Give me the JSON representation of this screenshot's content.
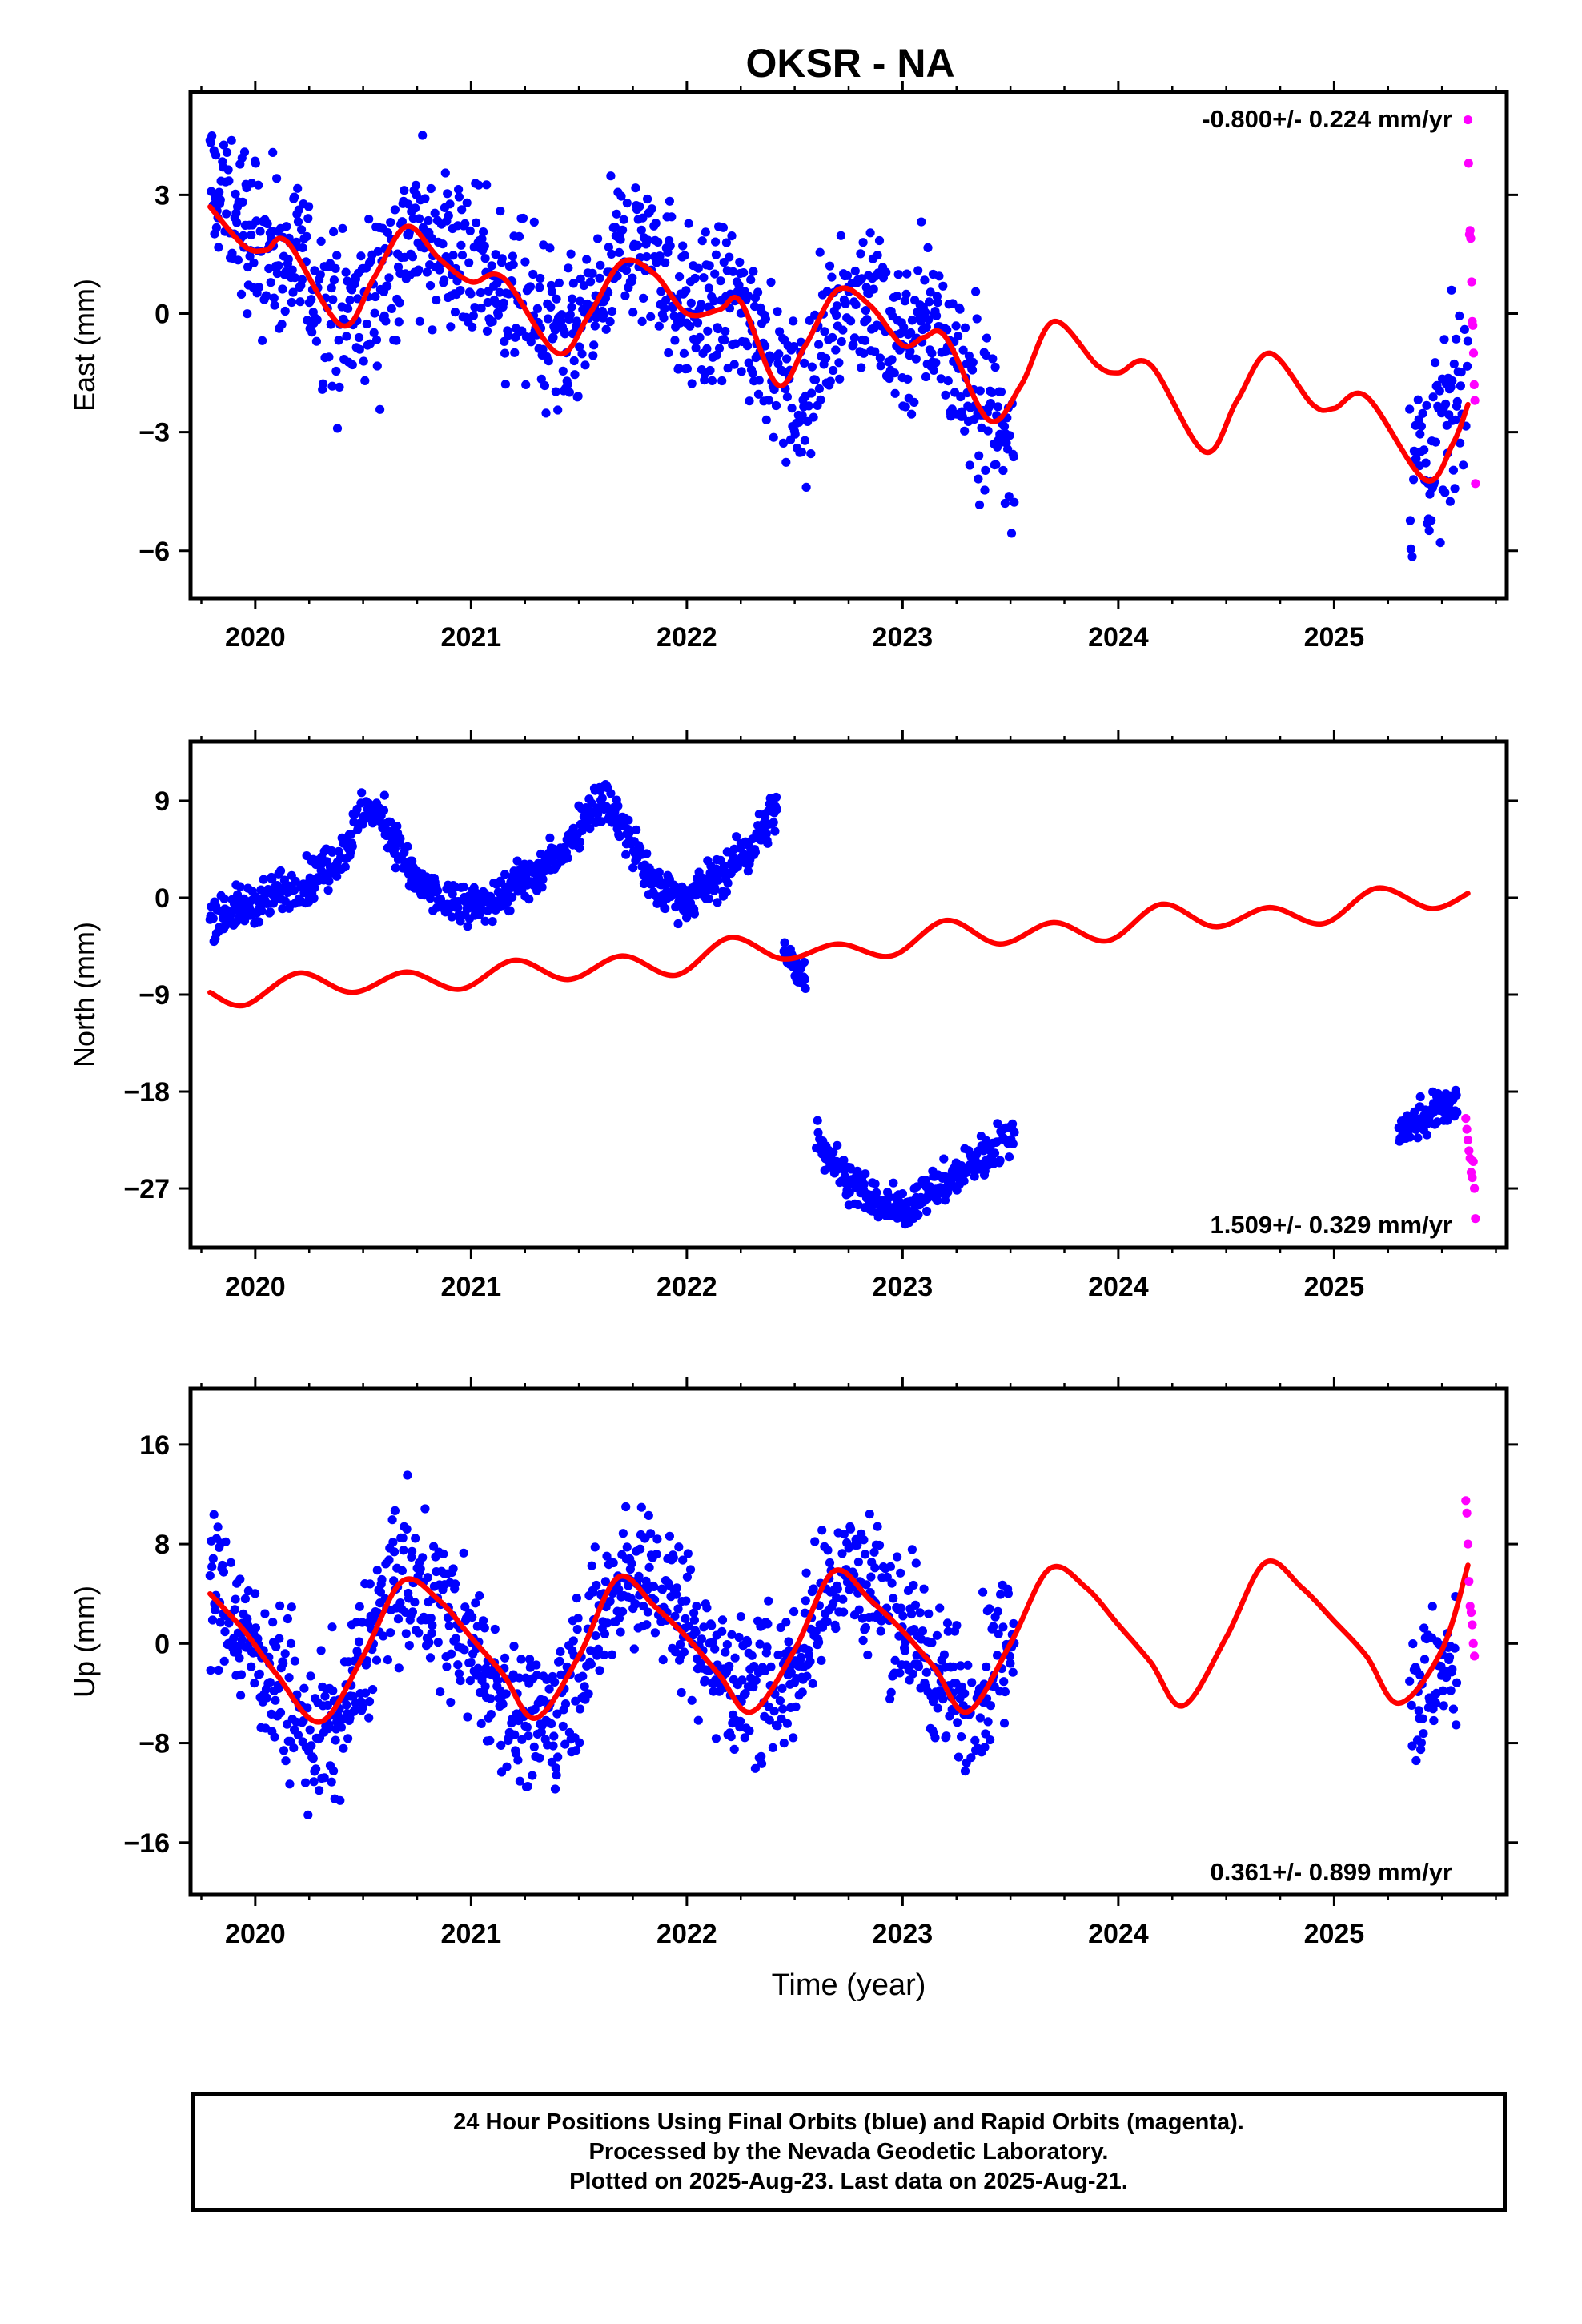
{
  "title": "OKSR - NA",
  "colors": {
    "final": "#0000ff",
    "rapid": "#ff00ff",
    "model": "#ff0000",
    "frame": "#000000"
  },
  "chart_data": [
    {
      "type": "scatter",
      "ylabel": "East (mm)",
      "rate_label": "-0.800+/- 0.224 mm/yr",
      "rate_position": "top-right",
      "xlim": [
        2019.7,
        2025.8
      ],
      "ylim": [
        -7.2,
        5.6
      ],
      "yticks": [
        3,
        0,
        -3,
        -6
      ],
      "ytick_labels": [
        "3",
        "0",
        "−3",
        "−6"
      ],
      "xticks": [
        2020,
        2021,
        2022,
        2023,
        2024,
        2025
      ],
      "xtick_labels": [
        "2020",
        "2021",
        "2022",
        "2023",
        "2024",
        "2025"
      ],
      "series": [
        {
          "kind": "final",
          "segments": [
            {
              "x": [
                2019.79,
                2020.0,
                2020.2,
                2020.4,
                2020.55,
                2020.7,
                2020.9,
                2021.1,
                2021.3,
                2021.45,
                2021.6,
                2021.7,
                2021.85,
                2022.0,
                2022.2,
                2022.35,
                2022.45,
                2022.55,
                2022.7,
                2022.85,
                2023.0,
                2023.15,
                2023.3,
                2023.4,
                2023.52
              ],
              "y": [
                3.3,
                1.8,
                1.3,
                -0.4,
                0.3,
                1.9,
                1.6,
                0.8,
                0.0,
                -1.0,
                0.2,
                1.8,
                1.6,
                0.0,
                0.2,
                -0.4,
                -1.8,
                -2.4,
                0.4,
                0.3,
                -0.6,
                -0.1,
                -1.8,
                -2.6,
                -3.2
              ],
              "spread": 1.2
            },
            {
              "x": [
                2025.35,
                2025.45,
                2025.55,
                2025.62
              ],
              "y": [
                -4.0,
                -3.5,
                -2.6,
                -1.6
              ],
              "spread": 1.3
            }
          ]
        },
        {
          "kind": "rapid",
          "x": [
            2025.62,
            2025.623,
            2025.627,
            2025.63,
            2025.633,
            2025.637,
            2025.64,
            2025.643,
            2025.646,
            2025.649,
            2025.652,
            2025.655
          ],
          "y": [
            4.9,
            3.8,
            2.0,
            2.1,
            1.9,
            0.8,
            -0.2,
            -0.3,
            -1.0,
            -1.8,
            -2.2,
            -4.3
          ]
        },
        {
          "kind": "model",
          "x": [
            2019.79,
            2019.95,
            2020.05,
            2020.15,
            2020.4,
            2020.55,
            2020.7,
            2020.85,
            2021.0,
            2021.15,
            2021.4,
            2021.55,
            2021.7,
            2021.85,
            2022.0,
            2022.15,
            2022.25,
            2022.42,
            2022.55,
            2022.7,
            2022.85,
            2023.0,
            2023.1,
            2023.2,
            2023.4,
            2023.55,
            2023.7,
            2023.9,
            2024.0,
            2024.15,
            2024.4,
            2024.55,
            2024.7,
            2024.9,
            2025.0,
            2025.15,
            2025.42,
            2025.55,
            2025.62
          ],
          "y": [
            2.7,
            1.7,
            1.6,
            1.8,
            -0.3,
            0.9,
            2.2,
            1.4,
            0.8,
            0.9,
            -1.0,
            0.0,
            1.3,
            1.0,
            0.0,
            0.1,
            0.3,
            -1.8,
            -0.8,
            0.6,
            0.2,
            -0.8,
            -0.6,
            -0.6,
            -2.7,
            -1.8,
            -0.2,
            -1.3,
            -1.5,
            -1.3,
            -3.5,
            -2.2,
            -1.0,
            -2.3,
            -2.4,
            -2.1,
            -4.2,
            -3.3,
            -2.3
          ]
        }
      ]
    },
    {
      "type": "scatter",
      "ylabel": "North (mm)",
      "rate_label": "1.509+/- 0.329 mm/yr",
      "rate_position": "bottom-right",
      "xlim": [
        2019.7,
        2025.8
      ],
      "ylim": [
        -32.5,
        14.5
      ],
      "yticks": [
        9,
        0,
        -9,
        -18,
        -27
      ],
      "ytick_labels": [
        "9",
        "0",
        "−9",
        "−18",
        "−27"
      ],
      "xticks": [
        2020,
        2021,
        2022,
        2023,
        2024,
        2025
      ],
      "xtick_labels": [
        "2020",
        "2021",
        "2022",
        "2023",
        "2024",
        "2025"
      ],
      "series": [
        {
          "kind": "final",
          "segments": [
            {
              "x": [
                2019.79,
                2019.95,
                2020.1,
                2020.25,
                2020.4,
                2020.5,
                2020.6,
                2020.72,
                2020.85,
                2021.0,
                2021.15,
                2021.3,
                2021.45,
                2021.55,
                2021.62,
                2021.72,
                2021.85,
                2022.0,
                2022.15,
                2022.3,
                2022.42
              ],
              "y": [
                -1.5,
                -1.0,
                0.5,
                1.5,
                4.0,
                8.0,
                7.5,
                2.0,
                -0.2,
                -1.0,
                0.5,
                2.0,
                5.0,
                8.5,
                9.0,
                6.0,
                1.0,
                0.0,
                2.0,
                4.5,
                8.5
              ],
              "spread": 1.2
            },
            {
              "x": [
                2022.45,
                2022.5,
                2022.55
              ],
              "y": [
                -5.0,
                -6.5,
                -7.5
              ],
              "spread": 0.8
            },
            {
              "x": [
                2022.6,
                2022.7,
                2022.8,
                2022.9,
                2023.0,
                2023.1,
                2023.2,
                2023.3,
                2023.4,
                2023.52
              ],
              "y": [
                -22.0,
                -25.0,
                -27.0,
                -28.5,
                -29.0,
                -27.5,
                -26.5,
                -25.0,
                -23.5,
                -22.0
              ],
              "spread": 1.1
            },
            {
              "x": [
                2025.3,
                2025.4,
                2025.5,
                2025.57
              ],
              "y": [
                -21.5,
                -20.5,
                -19.5,
                -19.0
              ],
              "spread": 1.0
            }
          ]
        },
        {
          "kind": "rapid",
          "x": [
            2025.61,
            2025.615,
            2025.62,
            2025.625,
            2025.63,
            2025.635,
            2025.64,
            2025.645,
            2025.65,
            2025.655
          ],
          "y": [
            -20.5,
            -21.5,
            -22.5,
            -23.5,
            -24.2,
            -25.5,
            -26.0,
            -24.5,
            -27.0,
            -29.8
          ]
        },
        {
          "kind": "model",
          "x": [
            2019.79,
            2019.95,
            2020.2,
            2020.45,
            2020.7,
            2020.95,
            2021.2,
            2021.45,
            2021.7,
            2021.95,
            2022.2,
            2022.45,
            2022.7,
            2022.95,
            2023.2,
            2023.45,
            2023.7,
            2023.95,
            2024.2,
            2024.45,
            2024.7,
            2024.95,
            2025.2,
            2025.45,
            2025.62
          ],
          "y": [
            -8.8,
            -10.0,
            -7.0,
            -8.8,
            -6.9,
            -8.5,
            -5.8,
            -7.6,
            -5.4,
            -7.2,
            -3.7,
            -5.7,
            -4.3,
            -5.4,
            -2.1,
            -4.3,
            -2.3,
            -4.0,
            -0.6,
            -2.7,
            -0.9,
            -2.4,
            0.9,
            -1.0,
            0.4
          ]
        }
      ]
    },
    {
      "type": "scatter",
      "ylabel": "Up (mm)",
      "xlabel": "Time (year)",
      "rate_label": "0.361+/- 0.899 mm/yr",
      "rate_position": "bottom-right",
      "xlim": [
        2019.7,
        2025.8
      ],
      "ylim": [
        -20.2,
        20.5
      ],
      "yticks": [
        16,
        8,
        0,
        -8,
        -16
      ],
      "ytick_labels": [
        "16",
        "8",
        "0",
        "−8",
        "−16"
      ],
      "xticks": [
        2020,
        2021,
        2022,
        2023,
        2024,
        2025
      ],
      "xtick_labels": [
        "2020",
        "2021",
        "2022",
        "2023",
        "2024",
        "2025"
      ],
      "series": [
        {
          "kind": "final",
          "segments": [
            {
              "x": [
                2019.79,
                2019.95,
                2020.1,
                2020.25,
                2020.4,
                2020.55,
                2020.65,
                2020.8,
                2020.95,
                2021.1,
                2021.25,
                2021.4,
                2021.55,
                2021.7,
                2021.85,
                2022.0,
                2022.15,
                2022.3,
                2022.45,
                2022.6,
                2022.72,
                2022.85,
                2023.0,
                2023.15,
                2023.3,
                2023.45,
                2023.52
              ],
              "y": [
                5.0,
                1.0,
                -3.0,
                -8.0,
                -6.0,
                1.0,
                5.0,
                4.0,
                1.0,
                -3.0,
                -7.0,
                -5.0,
                0.0,
                6.0,
                5.0,
                2.0,
                -2.0,
                -4.0,
                -3.0,
                2.0,
                6.0,
                5.0,
                2.0,
                -2.0,
                -5.0,
                -1.0,
                3.0
              ],
              "spread": 3.5
            },
            {
              "x": [
                2025.35,
                2025.45,
                2025.57
              ],
              "y": [
                -4.5,
                -3.0,
                -2.0
              ],
              "spread": 3.5
            }
          ]
        },
        {
          "kind": "rapid",
          "x": [
            2025.61,
            2025.615,
            2025.62,
            2025.625,
            2025.63,
            2025.635,
            2025.64,
            2025.645,
            2025.65
          ],
          "y": [
            11.5,
            10.5,
            8.0,
            5.0,
            3.0,
            2.5,
            1.5,
            0.0,
            -1.0
          ]
        },
        {
          "kind": "model",
          "x": [
            2019.79,
            2019.95,
            2020.1,
            2020.3,
            2020.5,
            2020.68,
            2020.85,
            2021.0,
            2021.15,
            2021.3,
            2021.5,
            2021.68,
            2021.85,
            2022.0,
            2022.15,
            2022.3,
            2022.5,
            2022.68,
            2022.85,
            2023.0,
            2023.15,
            2023.3,
            2023.5,
            2023.68,
            2023.85,
            2024.0,
            2024.15,
            2024.3,
            2024.5,
            2024.68,
            2024.85,
            2025.0,
            2025.15,
            2025.3,
            2025.5,
            2025.62
          ],
          "y": [
            4.0,
            1.0,
            -2.5,
            -6.3,
            -1.0,
            5.0,
            3.5,
            0.5,
            -2.5,
            -6.0,
            -1.0,
            5.3,
            3.0,
            0.5,
            -2.5,
            -5.5,
            -0.5,
            5.8,
            3.5,
            1.0,
            -2.0,
            -5.5,
            0.0,
            6.0,
            4.5,
            1.5,
            -1.5,
            -5.0,
            0.5,
            6.5,
            4.5,
            1.8,
            -1.0,
            -4.8,
            -0.5,
            6.3
          ]
        }
      ]
    }
  ],
  "footer": {
    "line1": "24 Hour Positions Using Final Orbits (blue) and Rapid Orbits (magenta).",
    "line2": "Processed by the Nevada Geodetic Laboratory.",
    "line3": "Plotted on 2025-Aug-23. Last data on 2025-Aug-21."
  }
}
